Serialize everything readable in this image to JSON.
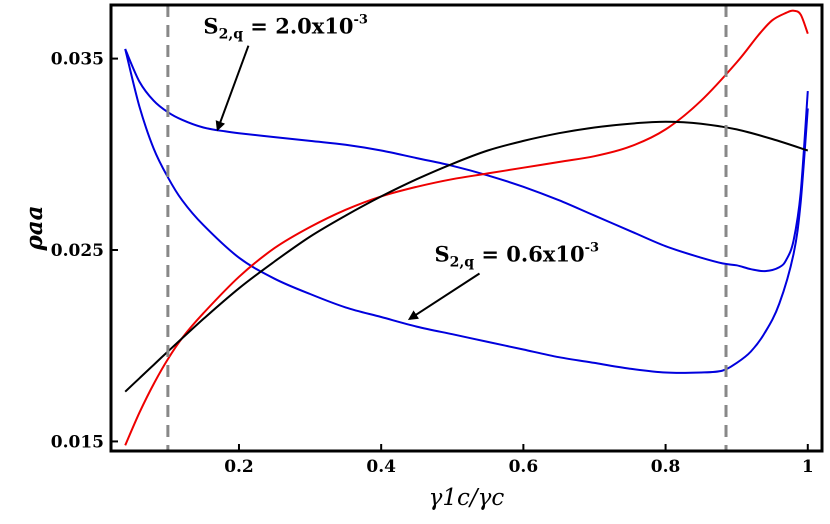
{
  "chart_data": {
    "type": "line",
    "xlabel": "γ1c/γc",
    "ylabel": "ρaa",
    "xlim": [
      0.02,
      1.02
    ],
    "ylim": [
      0.0145,
      0.0378
    ],
    "x_ticks": [
      {
        "value": 0.2,
        "label": "0.2"
      },
      {
        "value": 0.4,
        "label": "0.4"
      },
      {
        "value": 0.6,
        "label": "0.6"
      },
      {
        "value": 0.8,
        "label": "0.8"
      },
      {
        "value": 1.0,
        "label": "1"
      }
    ],
    "y_ticks": [
      {
        "value": 0.015,
        "label": "0.015"
      },
      {
        "value": 0.025,
        "label": "0.025"
      },
      {
        "value": 0.035,
        "label": "0.035"
      }
    ],
    "grid": false,
    "legend": "none",
    "vlines": [
      0.1,
      0.885
    ],
    "series": [
      {
        "color": "#0000dd",
        "x": [
          0.04,
          0.06,
          0.08,
          0.1,
          0.12,
          0.15,
          0.18,
          0.2,
          0.25,
          0.3,
          0.35,
          0.4,
          0.45,
          0.5,
          0.55,
          0.6,
          0.65,
          0.7,
          0.75,
          0.8,
          0.85,
          0.88,
          0.9,
          0.92,
          0.94,
          0.96,
          0.97,
          0.98,
          0.99,
          1.0
        ],
        "y": [
          0.0355,
          0.0338,
          0.0328,
          0.0322,
          0.0318,
          0.0314,
          0.0312,
          0.0311,
          0.0309,
          0.0307,
          0.0305,
          0.0302,
          0.0298,
          0.0294,
          0.0289,
          0.0283,
          0.0276,
          0.0268,
          0.026,
          0.0252,
          0.0246,
          0.0243,
          0.0242,
          0.024,
          0.0239,
          0.0241,
          0.0245,
          0.0255,
          0.028,
          0.0333
        ]
      },
      {
        "color": "#0000dd",
        "x": [
          0.04,
          0.06,
          0.08,
          0.1,
          0.12,
          0.15,
          0.2,
          0.25,
          0.3,
          0.35,
          0.4,
          0.45,
          0.5,
          0.55,
          0.6,
          0.65,
          0.7,
          0.75,
          0.8,
          0.85,
          0.88,
          0.9,
          0.92,
          0.94,
          0.96,
          0.98,
          0.99,
          1.0
        ],
        "y": [
          0.0355,
          0.0325,
          0.0303,
          0.0288,
          0.0276,
          0.0263,
          0.0246,
          0.0235,
          0.0227,
          0.022,
          0.0215,
          0.021,
          0.0206,
          0.0202,
          0.0198,
          0.0194,
          0.0191,
          0.0188,
          0.0186,
          0.0186,
          0.0187,
          0.0191,
          0.0197,
          0.0207,
          0.0222,
          0.0248,
          0.0275,
          0.0324
        ]
      },
      {
        "color": "#ee0000",
        "x": [
          0.04,
          0.06,
          0.08,
          0.1,
          0.12,
          0.15,
          0.2,
          0.25,
          0.3,
          0.35,
          0.4,
          0.45,
          0.5,
          0.55,
          0.6,
          0.65,
          0.7,
          0.75,
          0.8,
          0.85,
          0.9,
          0.93,
          0.95,
          0.97,
          0.98,
          0.99,
          1.0
        ],
        "y": [
          0.0148,
          0.0165,
          0.018,
          0.0193,
          0.0204,
          0.0217,
          0.0236,
          0.0251,
          0.0262,
          0.0271,
          0.0278,
          0.0283,
          0.0287,
          0.029,
          0.0293,
          0.0296,
          0.0299,
          0.0304,
          0.0313,
          0.0328,
          0.0348,
          0.0362,
          0.037,
          0.0374,
          0.0375,
          0.0373,
          0.0363
        ]
      },
      {
        "color": "#000000",
        "x": [
          0.04,
          0.06,
          0.08,
          0.1,
          0.15,
          0.2,
          0.25,
          0.3,
          0.35,
          0.4,
          0.45,
          0.5,
          0.55,
          0.6,
          0.65,
          0.7,
          0.75,
          0.8,
          0.85,
          0.9,
          0.95,
          1.0
        ],
        "y": [
          0.0176,
          0.0183,
          0.019,
          0.0197,
          0.0214,
          0.023,
          0.0244,
          0.0257,
          0.0268,
          0.0278,
          0.0287,
          0.0295,
          0.0302,
          0.0307,
          0.0311,
          0.0314,
          0.0316,
          0.0317,
          0.0316,
          0.0313,
          0.0308,
          0.0302
        ]
      }
    ],
    "annotations": [
      {
        "base": "S",
        "sub": "2,q",
        "text": " = 2.0x10",
        "sup": "-3",
        "x": 0.15,
        "y": 0.0363,
        "arrow_to": [
          0.17,
          0.0313
        ]
      },
      {
        "base": "S",
        "sub": "2,q",
        "text": " = 0.6x10",
        "sup": "-3",
        "x": 0.475,
        "y": 0.0244,
        "arrow_to": [
          0.44,
          0.0214
        ]
      }
    ]
  }
}
